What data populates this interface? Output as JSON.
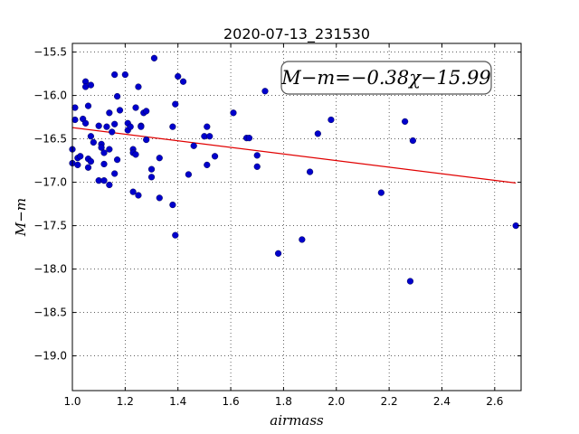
{
  "chart_data": {
    "type": "scatter",
    "title": "2020-07-13_231530",
    "xlabel": "airmass",
    "ylabel": "M−m",
    "xlim": [
      1.0,
      2.7
    ],
    "ylim": [
      -19.4,
      -15.4
    ],
    "y_inverted": true,
    "grid": true,
    "x_ticks": [
      1.0,
      1.2,
      1.4,
      1.6,
      1.8,
      2.0,
      2.2,
      2.4,
      2.6
    ],
    "x_tick_labels": [
      "1.0",
      "1.2",
      "1.4",
      "1.6",
      "1.8",
      "2.0",
      "2.2",
      "2.4",
      "2.6"
    ],
    "y_ticks": [
      -15.5,
      -16.0,
      -16.5,
      -17.0,
      -17.5,
      -18.0,
      -18.5,
      -19.0
    ],
    "y_tick_labels": [
      "−15.5",
      "−16.0",
      "−16.5",
      "−17.0",
      "−17.5",
      "−18.0",
      "−18.5",
      "−19.0"
    ],
    "annotation": "M−m=−0.38χ−15.99",
    "annotation_position": "top-right",
    "fit": {
      "slope": -0.38,
      "intercept": -15.99,
      "x_range": [
        1.0,
        2.68
      ],
      "color": "#e00000"
    },
    "point_color": "#0000cc",
    "points": [
      [
        1.0,
        -16.62
      ],
      [
        1.0,
        -16.78
      ],
      [
        1.01,
        -16.28
      ],
      [
        1.01,
        -16.14
      ],
      [
        1.02,
        -16.72
      ],
      [
        1.02,
        -16.8
      ],
      [
        1.03,
        -16.7
      ],
      [
        1.04,
        -16.27
      ],
      [
        1.05,
        -16.32
      ],
      [
        1.05,
        -15.84
      ],
      [
        1.05,
        -15.9
      ],
      [
        1.06,
        -16.12
      ],
      [
        1.06,
        -16.73
      ],
      [
        1.06,
        -16.83
      ],
      [
        1.07,
        -16.47
      ],
      [
        1.07,
        -16.76
      ],
      [
        1.07,
        -15.88
      ],
      [
        1.08,
        -16.54
      ],
      [
        1.1,
        -16.35
      ],
      [
        1.1,
        -16.98
      ],
      [
        1.11,
        -16.56
      ],
      [
        1.11,
        -16.6
      ],
      [
        1.12,
        -16.66
      ],
      [
        1.12,
        -16.79
      ],
      [
        1.12,
        -16.98
      ],
      [
        1.13,
        -16.36
      ],
      [
        1.14,
        -16.2
      ],
      [
        1.14,
        -17.03
      ],
      [
        1.14,
        -16.62
      ],
      [
        1.15,
        -16.42
      ],
      [
        1.16,
        -16.33
      ],
      [
        1.16,
        -16.9
      ],
      [
        1.16,
        -15.76
      ],
      [
        1.17,
        -16.01
      ],
      [
        1.17,
        -16.74
      ],
      [
        1.18,
        -16.17
      ],
      [
        1.2,
        -15.76
      ],
      [
        1.21,
        -16.32
      ],
      [
        1.21,
        -16.4
      ],
      [
        1.22,
        -16.36
      ],
      [
        1.23,
        -16.62
      ],
      [
        1.23,
        -16.66
      ],
      [
        1.23,
        -17.11
      ],
      [
        1.24,
        -16.68
      ],
      [
        1.24,
        -16.14
      ],
      [
        1.25,
        -15.9
      ],
      [
        1.25,
        -17.15
      ],
      [
        1.26,
        -16.35
      ],
      [
        1.26,
        -16.36
      ],
      [
        1.27,
        -16.2
      ],
      [
        1.28,
        -16.18
      ],
      [
        1.28,
        -16.51
      ],
      [
        1.3,
        -16.85
      ],
      [
        1.3,
        -16.94
      ],
      [
        1.31,
        -15.57
      ],
      [
        1.33,
        -17.18
      ],
      [
        1.33,
        -16.72
      ],
      [
        1.38,
        -17.26
      ],
      [
        1.38,
        -16.36
      ],
      [
        1.39,
        -16.1
      ],
      [
        1.39,
        -17.61
      ],
      [
        1.4,
        -15.78
      ],
      [
        1.42,
        -15.84
      ],
      [
        1.44,
        -16.91
      ],
      [
        1.46,
        -16.58
      ],
      [
        1.5,
        -16.47
      ],
      [
        1.51,
        -16.8
      ],
      [
        1.51,
        -16.36
      ],
      [
        1.52,
        -16.47
      ],
      [
        1.54,
        -16.7
      ],
      [
        1.61,
        -16.2
      ],
      [
        1.66,
        -16.49
      ],
      [
        1.67,
        -16.49
      ],
      [
        1.7,
        -16.69
      ],
      [
        1.7,
        -16.82
      ],
      [
        1.73,
        -15.95
      ],
      [
        1.78,
        -17.82
      ],
      [
        1.87,
        -17.66
      ],
      [
        1.9,
        -16.88
      ],
      [
        1.93,
        -16.44
      ],
      [
        1.98,
        -16.28
      ],
      [
        2.17,
        -17.12
      ],
      [
        2.26,
        -16.3
      ],
      [
        2.28,
        -18.14
      ],
      [
        2.29,
        -16.52
      ],
      [
        2.68,
        -17.5
      ]
    ]
  }
}
